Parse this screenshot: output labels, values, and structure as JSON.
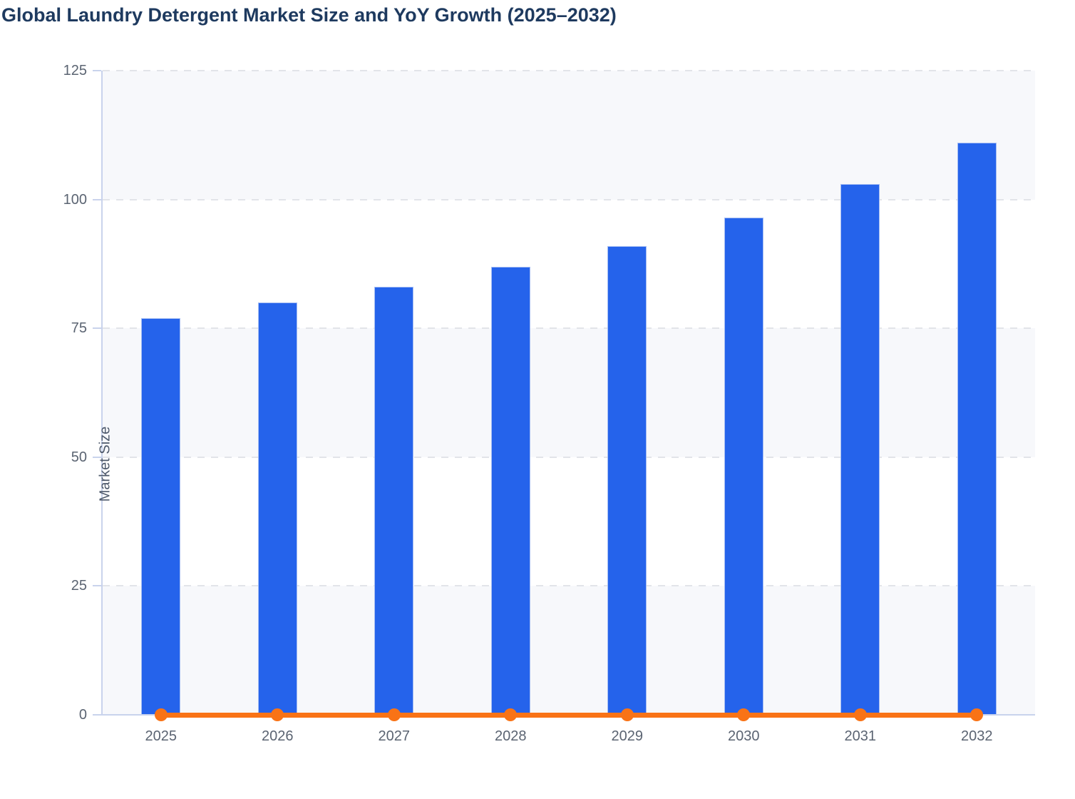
{
  "title": "Global Laundry Detergent Market Size and YoY Growth (2025–2032)",
  "colors": {
    "bar": "#2563eb",
    "bar_border": "#a5bdf3",
    "line": "#f97316",
    "title_text": "#1e3a5f",
    "axis_label": "#5b6472",
    "axis_line": "#c9d3ec",
    "gridline": "#e2e4e9",
    "band_fill": "#f7f8fb",
    "background": "#ffffff"
  },
  "chart_data": {
    "type": "bar",
    "title": "Global Laundry Detergent Market Size and YoY Growth (2025–2032)",
    "categories": [
      "2025",
      "2026",
      "2027",
      "2028",
      "2029",
      "2030",
      "2031",
      "2032"
    ],
    "series": [
      {
        "name": "Market Size",
        "type": "bar",
        "color": "#2563eb",
        "values": [
          77,
          80,
          83,
          87,
          91,
          96.5,
          103,
          111
        ]
      },
      {
        "name": "YoY Growth",
        "type": "line",
        "color": "#f97316",
        "values": [
          0,
          0,
          0,
          0,
          0,
          0,
          0,
          0
        ],
        "display_note": "line renders flat at ~0 on the left axis with a round marker at each year"
      }
    ],
    "xlabel": "",
    "ylabel": "Market Size",
    "ylim": [
      0,
      125
    ],
    "yticks": [
      0,
      25,
      50,
      75,
      100,
      125
    ],
    "grid": "horizontal dashed gridlines at each y tick",
    "bands": "alternating light fill between 0-25, 50-75, 100-125",
    "legend": "none"
  }
}
